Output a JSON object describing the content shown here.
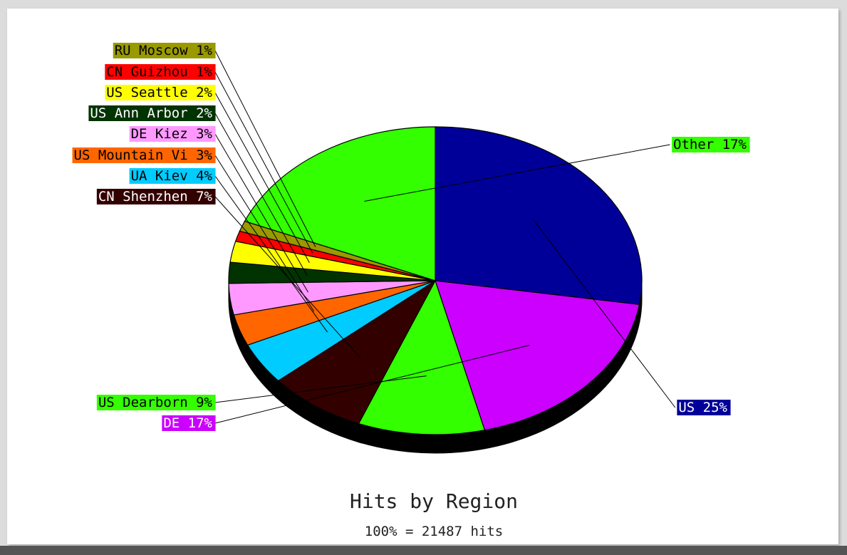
{
  "chart_data": {
    "type": "pie",
    "title": "Hits by Region",
    "subtitle": "100% = 21487 hits",
    "slices": [
      {
        "label": "US   25%",
        "percent": 25,
        "color": "#000099"
      },
      {
        "label": "DE   17%",
        "percent": 17,
        "color": "#cc00ff"
      },
      {
        "label": "US Dearborn 9%",
        "percent": 9,
        "color": "#33ff00"
      },
      {
        "label": "CN Shenzhen 7%",
        "percent": 7,
        "color": "#330000"
      },
      {
        "label": "UA Kiev 4%",
        "percent": 4,
        "color": "#00ccff"
      },
      {
        "label": "US Mountain Vi 3%",
        "percent": 3,
        "color": "#ff6600"
      },
      {
        "label": "DE Kiez 3%",
        "percent": 3,
        "color": "#ff99ff"
      },
      {
        "label": "US Ann Arbor 2%",
        "percent": 2,
        "color": "#003300"
      },
      {
        "label": "US Seattle 2%",
        "percent": 2,
        "color": "#ffff00"
      },
      {
        "label": "CN Guizhou 1%",
        "percent": 1,
        "color": "#ff0000"
      },
      {
        "label": "RU Moscow 1%",
        "percent": 1,
        "color": "#999900"
      },
      {
        "label": "Other 17%",
        "percent": 17,
        "color": "#33ff00"
      }
    ]
  }
}
